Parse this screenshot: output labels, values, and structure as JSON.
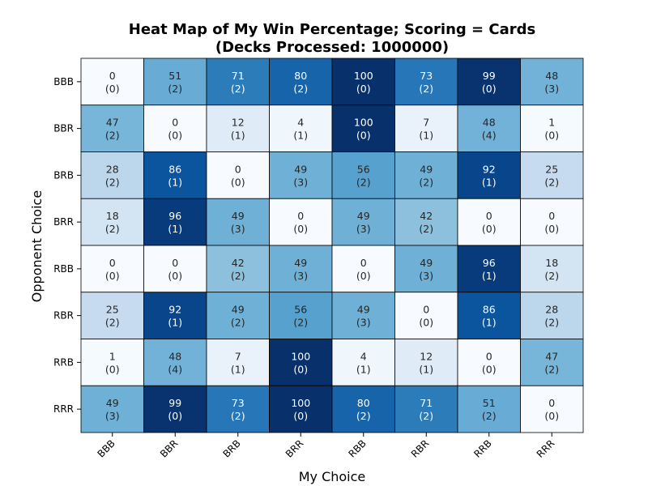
{
  "chart_data": {
    "type": "heatmap",
    "title": "Heat Map of My Win Percentage; Scoring = Cards",
    "subtitle": "(Decks Processed: 1000000)",
    "xlabel": "My Choice",
    "ylabel": "Opponent Choice",
    "x_categories": [
      "BBB",
      "BBR",
      "BRB",
      "BRR",
      "RBB",
      "RBR",
      "RRB",
      "RRR"
    ],
    "y_categories": [
      "BBB",
      "BBR",
      "BRB",
      "BRR",
      "RBB",
      "RBR",
      "RRB",
      "RRR"
    ],
    "values": [
      [
        0,
        51,
        71,
        80,
        100,
        73,
        99,
        48
      ],
      [
        47,
        0,
        12,
        4,
        100,
        7,
        48,
        1
      ],
      [
        28,
        86,
        0,
        49,
        56,
        49,
        92,
        25
      ],
      [
        18,
        96,
        49,
        0,
        49,
        42,
        0,
        0
      ],
      [
        0,
        0,
        42,
        49,
        0,
        49,
        96,
        18
      ],
      [
        25,
        92,
        49,
        56,
        49,
        0,
        86,
        28
      ],
      [
        1,
        48,
        7,
        100,
        4,
        12,
        0,
        47
      ],
      [
        49,
        99,
        73,
        100,
        80,
        71,
        51,
        0
      ]
    ],
    "secondary_values": [
      [
        0,
        2,
        2,
        2,
        0,
        2,
        0,
        3
      ],
      [
        2,
        0,
        1,
        1,
        0,
        1,
        4,
        0
      ],
      [
        2,
        1,
        0,
        3,
        2,
        2,
        1,
        2
      ],
      [
        2,
        1,
        3,
        0,
        3,
        2,
        0,
        0
      ],
      [
        0,
        0,
        2,
        3,
        0,
        3,
        1,
        2
      ],
      [
        2,
        1,
        2,
        2,
        3,
        0,
        1,
        2
      ],
      [
        0,
        4,
        1,
        0,
        1,
        1,
        0,
        2
      ],
      [
        3,
        0,
        2,
        0,
        2,
        2,
        2,
        0
      ]
    ],
    "vmin": 0,
    "vmax": 100,
    "colormap": "Blues",
    "colormap_stops": [
      "#f7fbff",
      "#deebf7",
      "#c6dbef",
      "#9ecae1",
      "#6baed6",
      "#4292c6",
      "#2171b5",
      "#08519c",
      "#08306b"
    ],
    "cell_border_color": "#000000",
    "colorbar": false
  }
}
